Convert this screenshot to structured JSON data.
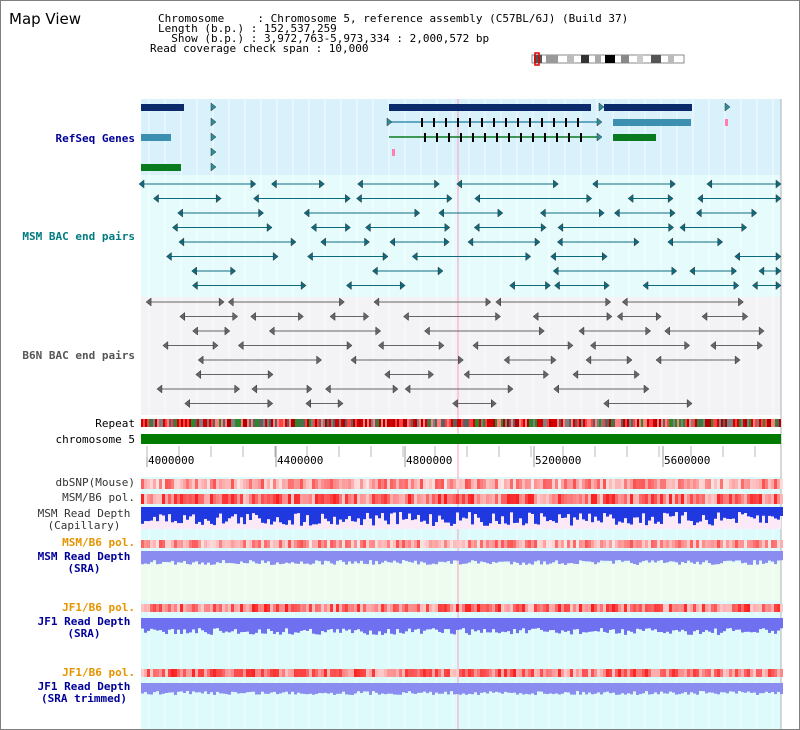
{
  "page": {
    "title": "Map View"
  },
  "info": {
    "chromosome_label": "Chromosome     : Chromosome 5, reference assembly (C57BL/6J) (Build 37)",
    "length_label": "Length (b.p.) : 152,537,259",
    "show_label": "  Show (b.p.) : 3,972,763-5,973,334 : 2,000,572 bp",
    "coverage_label": "Read coverage check span : 10,000"
  },
  "tracks": {
    "refseq_genes": "RefSeq Genes",
    "msm_bac": "MSM BAC end pairs",
    "b6n_bac": "B6N BAC end pairs",
    "repeat": "Repeat",
    "chromosome": "chromosome 5",
    "dbsnp": "dbSNP(Mouse)",
    "msm_b6_pol": "MSM/B6 pol.",
    "msm_read_depth_cap_1": "MSM Read Depth",
    "msm_read_depth_cap_2": "(Capillary)",
    "msm_b6_pol_sra": "MSM/B6 pol.",
    "msm_read_depth_sra_1": "MSM Read Depth",
    "msm_read_depth_sra_2": "(SRA)",
    "jf1_b6_pol": "JF1/B6 pol.",
    "jf1_read_depth_sra_1": "JF1 Read Depth",
    "jf1_read_depth_sra_2": "(SRA)",
    "jf1_b6_pol_trim": "JF1/B6 pol.",
    "jf1_read_depth_trim_1": "JF1 Read Depth",
    "jf1_read_depth_trim_2": "(SRA trimmed)"
  },
  "axis": {
    "ticks": [
      "4000000",
      "4400000",
      "4800000",
      "5200000",
      "5600000"
    ]
  },
  "colors": {
    "refseq_bg": "#d9f1fb",
    "msm_bg": "#e6fcfc",
    "b6n_bg": "#f3f3f5",
    "track_bg": "#ddfbfb",
    "msm_sra_bg": "#eefcf0",
    "label_navy": "#000099",
    "label_teal": "#007b80",
    "label_gray": "#555555",
    "label_orange": "#e59400",
    "chromosome_green": "#007b00"
  }
}
